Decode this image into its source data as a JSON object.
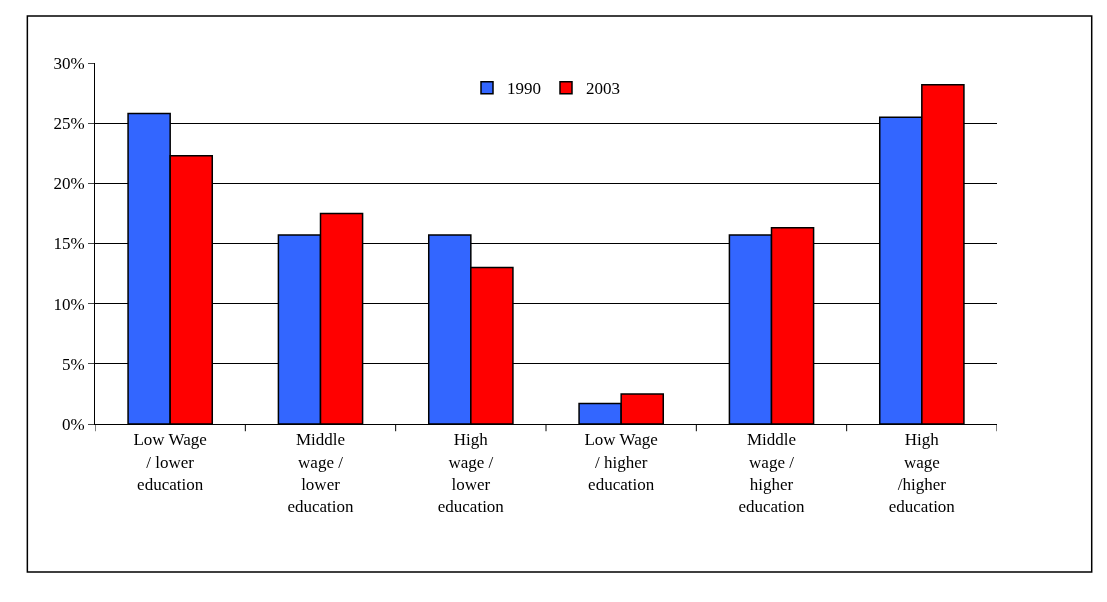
{
  "chart_data": {
    "type": "bar",
    "categories": [
      "Low Wage\n/ lower\neducation",
      "Middle\nwage /\nlower\neducation",
      "High\nwage /\nlower\neducation",
      "Low Wage\n/ higher\neducation",
      "Middle\nwage /\nhigher\neducation",
      "High\nwage\n/higher\neducation"
    ],
    "series": [
      {
        "name": "1990",
        "color": "#3366ff",
        "values": [
          25.8,
          15.7,
          15.7,
          1.7,
          15.7,
          25.5
        ]
      },
      {
        "name": "2003",
        "color": "#ff0000",
        "values": [
          22.3,
          17.5,
          13.0,
          2.5,
          16.3,
          28.2
        ]
      }
    ],
    "ylim": [
      0,
      30
    ],
    "yticks": [
      {
        "value": 0,
        "label": "0%"
      },
      {
        "value": 5,
        "label": "5%"
      },
      {
        "value": 10,
        "label": "10%"
      },
      {
        "value": 15,
        "label": "15%"
      },
      {
        "value": 20,
        "label": "20%"
      },
      {
        "value": 25,
        "label": "25%"
      },
      {
        "value": 30,
        "label": "30%"
      }
    ],
    "grid": "y",
    "legend": "top"
  }
}
